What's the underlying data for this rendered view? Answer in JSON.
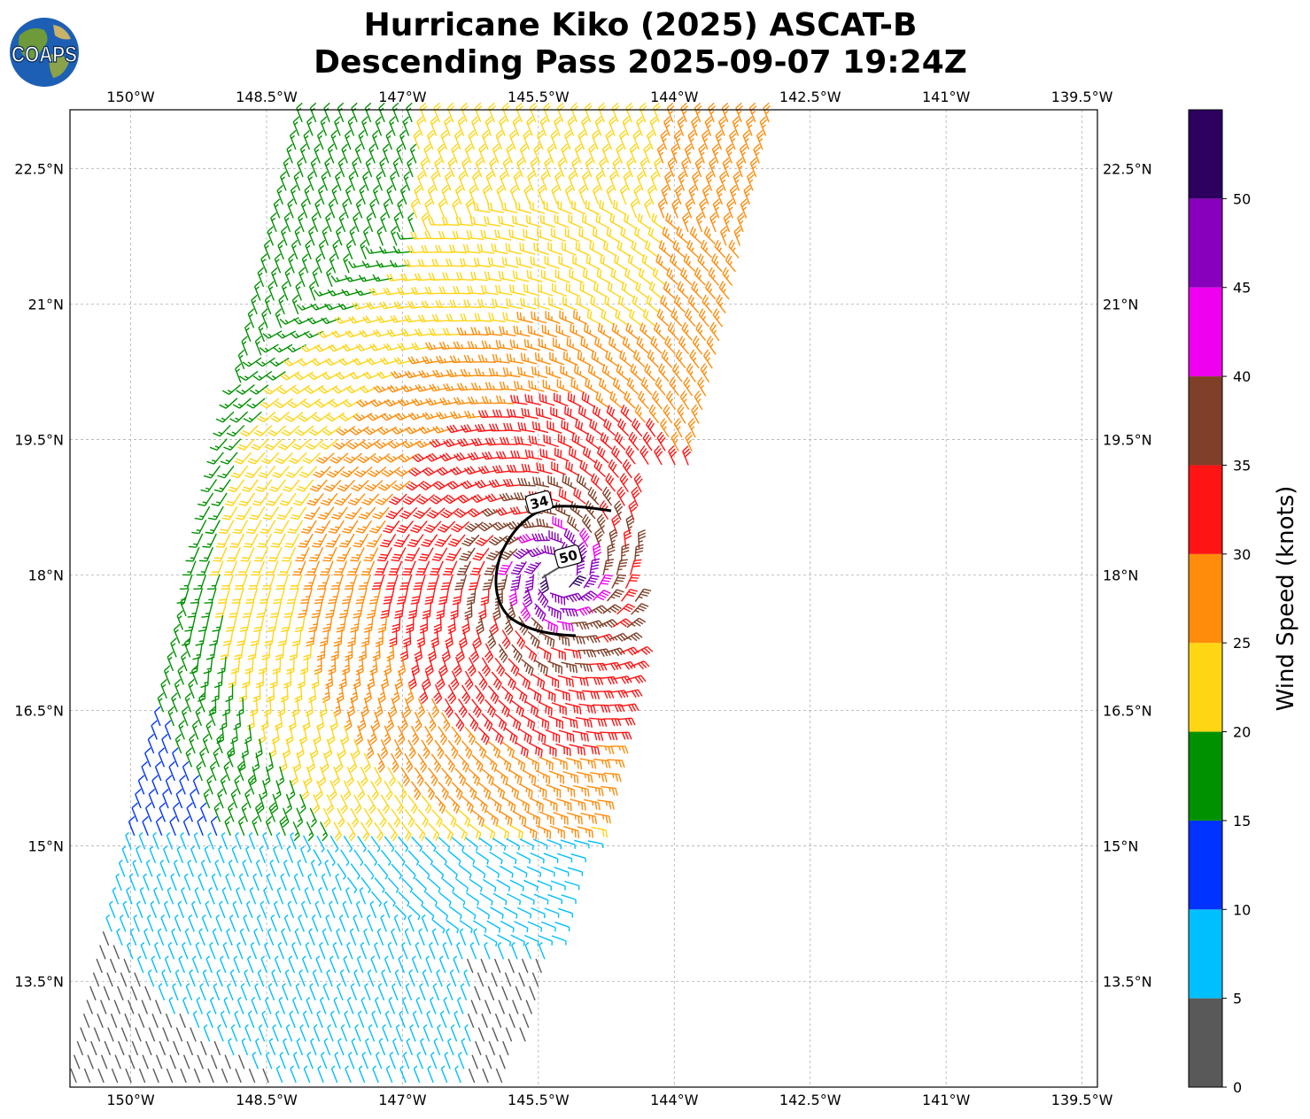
{
  "title_line1": "Hurricane Kiko (2025) ASCAT-B",
  "title_line2": "Descending Pass 2025-09-07 19:24Z",
  "logo_text": "COAPS",
  "map": {
    "lon_labels": [
      "150°W",
      "148.5°W",
      "147°W",
      "145.5°W",
      "144°W",
      "142.5°W",
      "141°W",
      "139.5°W"
    ],
    "lon_values": [
      -150,
      -148.5,
      -147,
      -145.5,
      -144,
      -142.5,
      -141,
      -139.5
    ],
    "lat_labels": [
      "22.5°N",
      "21°N",
      "19.5°N",
      "18°N",
      "16.5°N",
      "15°N",
      "13.5°N"
    ],
    "lat_values": [
      22.5,
      21,
      19.5,
      18,
      16.5,
      15,
      13.5
    ],
    "lon_range": [
      -150.67,
      -139.33
    ],
    "lat_range": [
      12.33,
      23.15
    ],
    "center": {
      "lon": -145.3,
      "lat": 18.0
    },
    "contour_labels": [
      {
        "text": "34",
        "lon": -145.49,
        "lat": 18.8
      },
      {
        "text": "50",
        "lon": -145.17,
        "lat": 18.2
      }
    ]
  },
  "colorbar": {
    "label": "Wind Speed (knots)",
    "ticks": [
      "0",
      "5",
      "10",
      "15",
      "20",
      "25",
      "30",
      "35",
      "40",
      "45",
      "50"
    ],
    "bins": [
      {
        "min": 0,
        "max": 5,
        "color": "#595959"
      },
      {
        "min": 5,
        "max": 10,
        "color": "#00bfff"
      },
      {
        "min": 10,
        "max": 15,
        "color": "#0033ff"
      },
      {
        "min": 15,
        "max": 20,
        "color": "#009100"
      },
      {
        "min": 20,
        "max": 25,
        "color": "#ffd514"
      },
      {
        "min": 25,
        "max": 30,
        "color": "#ff8c0a"
      },
      {
        "min": 30,
        "max": 35,
        "color": "#ff1414"
      },
      {
        "min": 35,
        "max": 40,
        "color": "#7f3f28"
      },
      {
        "min": 40,
        "max": 45,
        "color": "#ef00ef"
      },
      {
        "min": 45,
        "max": 50,
        "color": "#8800bb"
      },
      {
        "min": 50,
        "max": 55,
        "color": "#2e0060"
      }
    ]
  }
}
